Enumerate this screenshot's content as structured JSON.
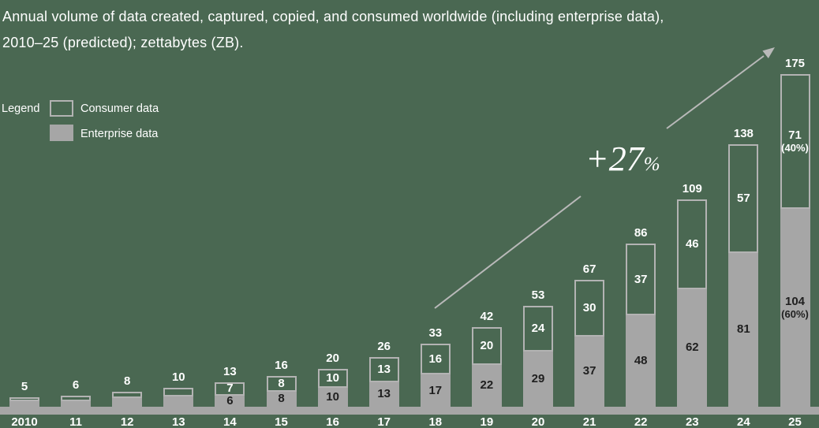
{
  "title": {
    "line1": "Annual volume of data created, captured, copied, and consumed worldwide (including enterprise data),",
    "line2": "2010–25 (predicted); zettabytes (ZB)."
  },
  "legend": {
    "label": "Legend",
    "items": [
      {
        "label": "Consumer data",
        "swatch": "outline"
      },
      {
        "label": "Enterprise data",
        "swatch": "filled"
      }
    ]
  },
  "annotation": {
    "growth_value": "+27",
    "growth_unit": "%"
  },
  "colors": {
    "background": "#4a6852",
    "bar_gray": "#a6a6a6",
    "bar_outline": "#b3b3b3",
    "arrow": "#b9b9b9",
    "text_light": "#ffffff",
    "text_dark": "#1f1f1f"
  },
  "chart_data": {
    "type": "bar",
    "stacked": true,
    "unit": "zettabytes (ZB)",
    "categories": [
      "2010",
      "11",
      "12",
      "13",
      "14",
      "15",
      "16",
      "17",
      "18",
      "19",
      "20",
      "21",
      "22",
      "23",
      "24",
      "25"
    ],
    "totals": [
      5,
      6,
      8,
      10,
      13,
      16,
      20,
      26,
      33,
      42,
      53,
      67,
      86,
      109,
      138,
      175
    ],
    "series": [
      {
        "name": "Enterprise data",
        "values": [
          null,
          null,
          null,
          null,
          6,
          8,
          10,
          13,
          17,
          22,
          29,
          37,
          48,
          62,
          81,
          104
        ]
      },
      {
        "name": "Consumer data",
        "values": [
          null,
          null,
          null,
          null,
          7,
          8,
          10,
          13,
          16,
          20,
          24,
          30,
          37,
          46,
          57,
          71
        ]
      }
    ],
    "enterprise_values_render": [
      3,
      3,
      4.5,
      5.5,
      6,
      8,
      10,
      13,
      17,
      22,
      29,
      37,
      48,
      62,
      81,
      104
    ],
    "last_bar_share_labels": {
      "consumer": "(40%)",
      "enterprise": "(60%)"
    },
    "growth_annotation": "+27%",
    "ylim": [
      0,
      175
    ],
    "legend_position": "top-left",
    "grid": false
  }
}
